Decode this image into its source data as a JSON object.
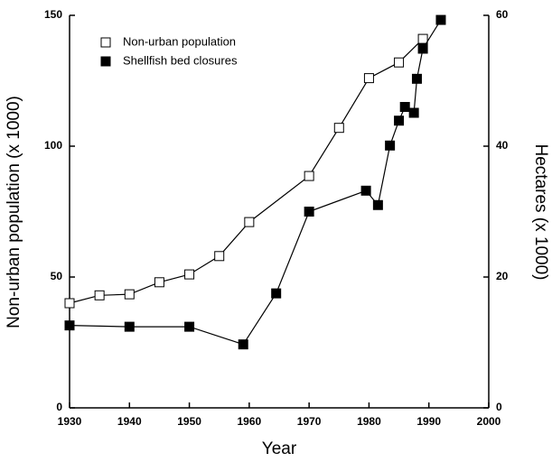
{
  "chart_data": {
    "type": "line",
    "xlabel": "Year",
    "ylabel": "Non-urban population (x 1000)",
    "y2label": "Hectares (x 1000)",
    "xlim": [
      1930,
      2000
    ],
    "xticks": [
      1930,
      1940,
      1950,
      1960,
      1970,
      1980,
      1990,
      2000
    ],
    "ylim": [
      0,
      150
    ],
    "yticks": [
      0,
      50,
      100,
      150
    ],
    "y2lim": [
      0,
      60
    ],
    "y2ticks": [
      0,
      20,
      40,
      60
    ],
    "legend": "upper left",
    "series": [
      {
        "name": "Non-urban population",
        "color": "#000000",
        "marker": "open-square",
        "x": [
          1930,
          1935,
          1940,
          1945,
          1950,
          1955,
          1960,
          1970,
          1975,
          1980,
          1985,
          1989
        ],
        "values": [
          40,
          43,
          43.4,
          48,
          51,
          58,
          71,
          88.6,
          107,
          126,
          132,
          141
        ]
      },
      {
        "name": "Shellfish bed closures",
        "color": "#000000",
        "marker": "filled-square",
        "axis": "y2",
        "x": [
          1930,
          1940,
          1950,
          1959,
          1964.5,
          1970,
          1979.5,
          1981.5,
          1983.5,
          1985,
          1986,
          1987.5,
          1988,
          1989,
          1992
        ],
        "values": [
          12.6,
          12.4,
          12.4,
          9.7,
          17.5,
          30,
          33.2,
          31,
          40.1,
          43.9,
          46,
          45.1,
          50.3,
          54.9,
          59.3
        ]
      }
    ]
  }
}
